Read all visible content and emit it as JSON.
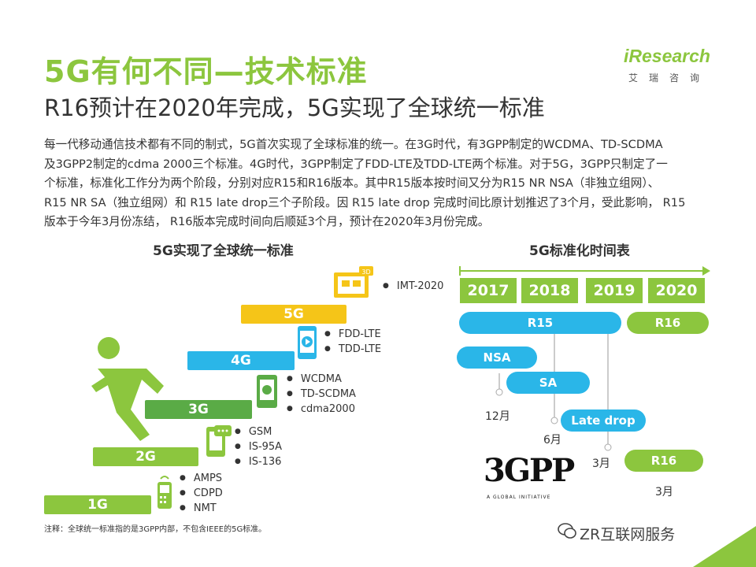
{
  "header": {
    "title": "5G有何不同—技术标准",
    "subtitle": "R16预计在2020年完成，5G实现了全球统一标准",
    "logo_text": "iResearch",
    "logo_sub": "艾瑞咨询"
  },
  "body_lines": [
    "每一代移动通信技术都有不同的制式，5G首次实现了全球标准的统一。在3G时代，有3GPP制定的WCDMA、TD-SCDMA",
    "及3GPP2制定的cdma 2000三个标准。4G时代，3GPP制定了FDD-LTE及TDD-LTE两个标准。对于5G，3GPP只制定了一",
    "个标准，标准化工作分为两个阶段，分别对应R15和R16版本。其中R15版本按时间又分为R15 NR NSA（非独立组网）、",
    "R15 NR SA（独立组网）和 R15 late drop三个子阶段。因 R15 late drop 完成时间比原计划推迟了3个月，受此影响， R15",
    "版本于今年3月份冻结， R16版本完成时间向后顺延3个月，预计在2020年3月份完成。"
  ],
  "left_panel": {
    "title": "5G实现了全球统一标准",
    "steps": [
      {
        "label": "1G",
        "color": "#8cc63e",
        "standards": [
          "AMPS",
          "CDPD",
          "NMT"
        ]
      },
      {
        "label": "2G",
        "color": "#8cc63e",
        "standards": [
          "GSM",
          "IS-95A",
          "IS-136"
        ]
      },
      {
        "label": "3G",
        "color": "#5aab46",
        "standards": [
          "WCDMA",
          "TD-SCDMA",
          "cdma2000"
        ]
      },
      {
        "label": "4G",
        "color": "#2ab6e8",
        "standards": [
          "FDD-LTE",
          "TDD-LTE"
        ]
      },
      {
        "label": "5G",
        "color": "#f5c518",
        "standards": []
      },
      {
        "label": "",
        "color": "#f5c518",
        "standards": [
          "IMT-2020"
        ]
      }
    ]
  },
  "right_panel": {
    "title": "5G标准化时间表",
    "years": [
      "2017",
      "2018",
      "2019",
      "2020"
    ],
    "pills": {
      "r15": "R15",
      "r16_top": "R16",
      "nsa": "NSA",
      "sa": "SA",
      "late_drop": "Late drop",
      "r16_bottom": "R16"
    },
    "labels": {
      "nsa_date": "12月",
      "sa_date": "6月",
      "late_date": "3月",
      "r16_date": "3月"
    },
    "org_logo": "3GPP",
    "org_tagline": "A GLOBAL INITIATIVE"
  },
  "footnote": "注释：全球统一标准指的是3GPP内部，不包含IEEE的5G标准。",
  "watermark": "ZR互联网服务",
  "colors": {
    "green": "#8cc63e",
    "dark_green": "#5aab46",
    "blue": "#2ab6e8",
    "yellow": "#f5c518"
  }
}
